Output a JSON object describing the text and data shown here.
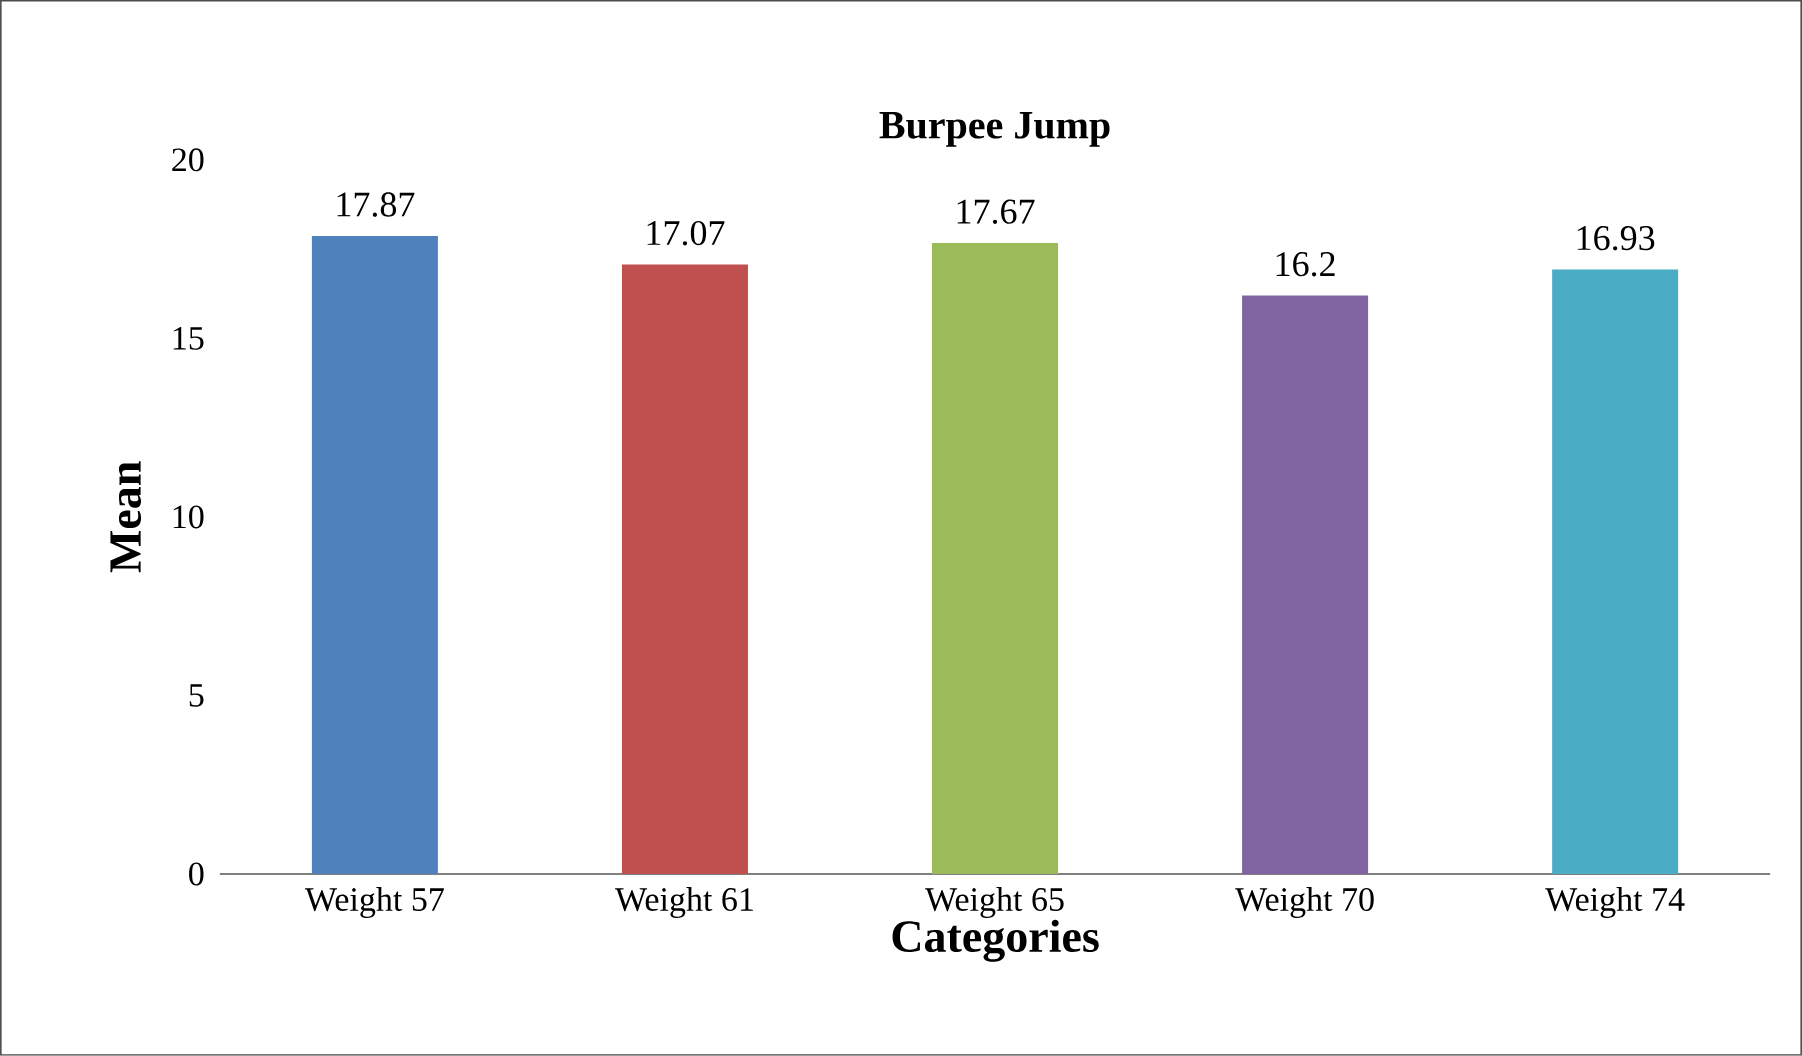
{
  "chart_data": {
    "type": "bar",
    "title": "Burpee Jump",
    "xlabel": "Categories",
    "ylabel": "Mean",
    "categories": [
      "Weight 57",
      "Weight 61",
      "Weight 65",
      "Weight 70",
      "Weight 74"
    ],
    "values": [
      17.87,
      17.07,
      17.67,
      16.2,
      16.93
    ],
    "colors": [
      "#4f81bd",
      "#c0504d",
      "#9bbb59",
      "#8064a2",
      "#4bacc6"
    ],
    "ylim": [
      0,
      20
    ],
    "yticks": [
      0,
      5,
      10,
      15,
      20
    ],
    "data_labels": true
  }
}
